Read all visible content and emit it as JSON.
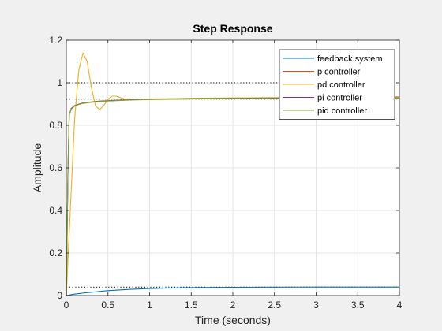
{
  "chart_data": {
    "type": "line",
    "title": "Step Response",
    "xlabel": "Time (seconds)",
    "ylabel": "Amplitude",
    "xlim": [
      0,
      4
    ],
    "ylim": [
      0,
      1.2
    ],
    "xticks": [
      "0",
      "0.5",
      "1",
      "1.5",
      "2",
      "2.5",
      "3",
      "3.5",
      "4"
    ],
    "yticks": [
      "0",
      "0.2",
      "0.4",
      "0.6",
      "0.8",
      "1",
      "1.2"
    ],
    "grid": true,
    "legend_position": "top-right",
    "reference_lines": [
      {
        "y": 1.0,
        "style": "dotted"
      },
      {
        "y": 0.923,
        "style": "dotted"
      },
      {
        "y": 0.04,
        "style": "dotted"
      }
    ],
    "series": [
      {
        "name": "feedback system",
        "color": "#0072bd",
        "points": [
          [
            0,
            0
          ],
          [
            0.05,
            0.0037
          ],
          [
            0.1,
            0.0068
          ],
          [
            0.2,
            0.0116
          ],
          [
            0.3,
            0.0156
          ],
          [
            0.5,
            0.0229
          ],
          [
            0.75,
            0.0291
          ],
          [
            1.0,
            0.0331
          ],
          [
            1.25,
            0.0356
          ],
          [
            1.5,
            0.0372
          ],
          [
            2.0,
            0.0389
          ],
          [
            2.5,
            0.0396
          ],
          [
            3.0,
            0.0399
          ],
          [
            3.5,
            0.04
          ],
          [
            4.0,
            0.04
          ]
        ]
      },
      {
        "name": "p controller",
        "color": "#d95319",
        "points": [
          [
            0,
            0
          ],
          [
            0.01,
            0.3
          ],
          [
            0.02,
            0.6
          ],
          [
            0.035,
            0.85
          ],
          [
            0.06,
            0.88
          ],
          [
            0.1,
            0.893
          ],
          [
            0.15,
            0.9
          ],
          [
            0.2,
            0.905
          ],
          [
            0.3,
            0.91
          ],
          [
            0.4,
            0.914
          ],
          [
            0.6,
            0.918
          ],
          [
            0.8,
            0.921
          ],
          [
            1.0,
            0.923
          ],
          [
            1.5,
            0.925
          ],
          [
            2.0,
            0.926
          ],
          [
            3.0,
            0.927
          ],
          [
            4.0,
            0.928
          ]
        ]
      },
      {
        "name": "pd controller",
        "color": "#edb120",
        "points": [
          [
            0,
            0
          ],
          [
            0.05,
            0.42
          ],
          [
            0.1,
            0.83
          ],
          [
            0.15,
            1.06
          ],
          [
            0.2,
            1.14
          ],
          [
            0.25,
            1.1
          ],
          [
            0.3,
            0.98
          ],
          [
            0.35,
            0.892
          ],
          [
            0.4,
            0.874
          ],
          [
            0.45,
            0.893
          ],
          [
            0.5,
            0.922
          ],
          [
            0.55,
            0.937
          ],
          [
            0.6,
            0.937
          ],
          [
            0.65,
            0.93
          ],
          [
            0.7,
            0.924
          ],
          [
            0.8,
            0.92
          ],
          [
            0.9,
            0.922
          ],
          [
            1.0,
            0.924
          ],
          [
            1.5,
            0.927
          ],
          [
            2.0,
            0.929
          ],
          [
            3.0,
            0.932
          ],
          [
            4.0,
            0.935
          ]
        ]
      },
      {
        "name": "pi controller",
        "color": "#7e2f8e",
        "points": [
          [
            0,
            0
          ],
          [
            0.01,
            0.3
          ],
          [
            0.02,
            0.6
          ],
          [
            0.035,
            0.85
          ],
          [
            0.06,
            0.878
          ],
          [
            0.1,
            0.891
          ],
          [
            0.15,
            0.899
          ],
          [
            0.2,
            0.904
          ],
          [
            0.3,
            0.909
          ],
          [
            0.4,
            0.913
          ],
          [
            0.6,
            0.917
          ],
          [
            0.8,
            0.92
          ],
          [
            1.0,
            0.922
          ],
          [
            1.5,
            0.925
          ],
          [
            2.0,
            0.927
          ],
          [
            3.0,
            0.929
          ],
          [
            4.0,
            0.93
          ]
        ]
      },
      {
        "name": "pid controller",
        "color": "#77ac30",
        "points": [
          [
            0,
            0
          ],
          [
            0.01,
            0.3
          ],
          [
            0.02,
            0.6
          ],
          [
            0.035,
            0.85
          ],
          [
            0.06,
            0.876
          ],
          [
            0.1,
            0.89
          ],
          [
            0.15,
            0.898
          ],
          [
            0.2,
            0.903
          ],
          [
            0.3,
            0.908
          ],
          [
            0.4,
            0.912
          ],
          [
            0.6,
            0.916
          ],
          [
            0.8,
            0.919
          ],
          [
            1.0,
            0.921
          ],
          [
            1.5,
            0.924
          ],
          [
            2.0,
            0.926
          ],
          [
            3.0,
            0.927
          ],
          [
            4.0,
            0.928
          ]
        ]
      }
    ]
  }
}
